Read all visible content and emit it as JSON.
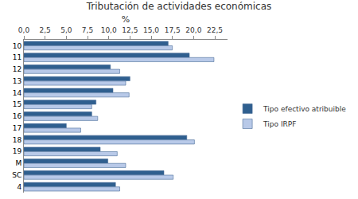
{
  "chart_data": {
    "type": "bar",
    "orientation": "horizontal",
    "title": "Tributación de actividades económicas",
    "x_label": "%",
    "categories": [
      "10",
      "11",
      "12",
      "13",
      "14",
      "15",
      "16",
      "17",
      "18",
      "19",
      "M",
      "SC",
      "4"
    ],
    "series": [
      {
        "name": "Tipo efectivo atribuible",
        "color": "#2f5f8f",
        "values": [
          17.0,
          19.5,
          10.2,
          12.5,
          10.5,
          8.5,
          8.0,
          5.0,
          19.2,
          9.0,
          9.9,
          16.5,
          10.8
        ]
      },
      {
        "name": "Tipo IRPF",
        "color": "#b8c9e8",
        "values": [
          17.5,
          22.4,
          11.3,
          12.0,
          12.4,
          8.0,
          8.7,
          6.7,
          20.1,
          11.0,
          12.0,
          17.6,
          11.3
        ]
      }
    ],
    "xlim": [
      0,
      24
    ],
    "xticks": [
      {
        "value": 0,
        "label": "0,0"
      },
      {
        "value": 2.5,
        "label": "2,5"
      },
      {
        "value": 5,
        "label": "5,0"
      },
      {
        "value": 7.5,
        "label": "7,5"
      },
      {
        "value": 10,
        "label": "10,0"
      },
      {
        "value": 12.5,
        "label": "12,5"
      },
      {
        "value": 15,
        "label": "15,0"
      },
      {
        "value": 17.5,
        "label": "17,5"
      },
      {
        "value": 20,
        "label": "20,0"
      },
      {
        "value": 22.5,
        "label": "22,5"
      }
    ],
    "grid": false,
    "legend": "right"
  }
}
